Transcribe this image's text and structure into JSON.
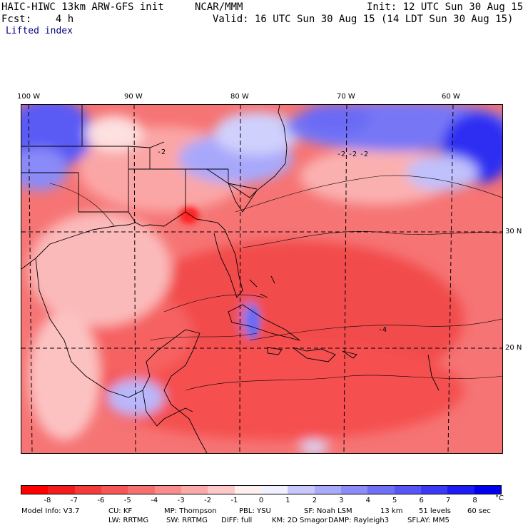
{
  "header": {
    "model": "HAIC-HIWC 13km ARW-GFS init",
    "org": "NCAR/MMM",
    "init": "Init: 12 UTC Sun 30 Aug 15",
    "fcst": "Fcst:    4 h",
    "valid": "Valid: 16 UTC Sun 30 Aug 15 (14 LDT Sun 30 Aug 15)",
    "field": "Lifted index"
  },
  "map": {
    "lon_labels": [
      "100 W",
      "90 W",
      "80 W",
      "70 W",
      "60 W"
    ],
    "lat_labels": [
      "30 N",
      "20 N"
    ],
    "contour_labels": [
      "-2",
      "-2",
      "-2",
      "-2",
      "-4"
    ]
  },
  "colorbar": {
    "colors": [
      "#ff0000",
      "#f21c1c",
      "#f53a3a",
      "#f65656",
      "#f77070",
      "#f98c8c",
      "#fbaaaa",
      "#fdc8c8",
      "#fff0f0",
      "#f0f0ff",
      "#c8c8fd",
      "#aaaafb",
      "#8c8cf9",
      "#7070f7",
      "#5656f6",
      "#3a3af5",
      "#1c1cf2",
      "#0000ee"
    ],
    "ticks": [
      "-8",
      "-7",
      "-6",
      "-5",
      "-4",
      "-3",
      "-2",
      "-1",
      "0",
      "1",
      "2",
      "3",
      "4",
      "5",
      "6",
      "7",
      "8"
    ],
    "unit": "°C"
  },
  "footer": {
    "line1": [
      "Model Info: V3.7",
      "CU: KF",
      "MP: Thompson",
      "PBL: YSU",
      "SF: Noah LSM",
      "13 km",
      "51 levels",
      "60 sec"
    ],
    "line2": [
      "LW: RRTMG",
      "SW: RRTMG",
      "DIFF: full",
      "KM: 2D Smagor",
      "DAMP: Rayleigh3",
      "SFLAY: MM5"
    ]
  }
}
